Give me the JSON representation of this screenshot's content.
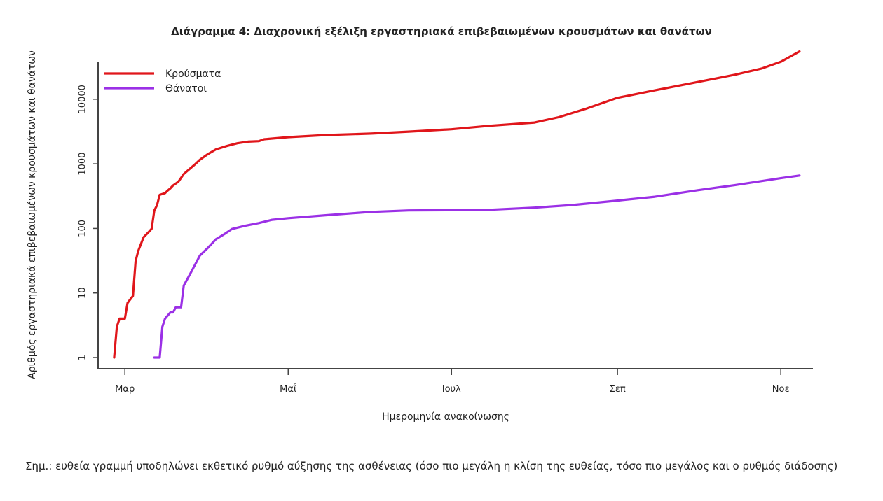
{
  "chart_data": {
    "type": "line",
    "title": "Διάγραμμα 4: Διαχρονική εξέλιξη εργαστηριακά επιβεβαιωμένων κρουσμάτων και θανάτων",
    "xlabel": "Ημερομηνία ανακοίνωσης",
    "ylabel": "Αριθμός εργαστηριακά επιβεβαιωμένων κρουσμάτων και θανάτων",
    "y_scale": "log",
    "ylim": [
      1,
      60000
    ],
    "xlim": [
      "2020-02-20",
      "2020-11-13"
    ],
    "y_ticks": [
      {
        "value": 1,
        "label": "1"
      },
      {
        "value": 10,
        "label": "10"
      },
      {
        "value": 100,
        "label": "100"
      },
      {
        "value": 1000,
        "label": "1000"
      },
      {
        "value": 10000,
        "label": "10000"
      }
    ],
    "x_ticks": [
      {
        "date": "2020-03-01",
        "label": "Μαρ"
      },
      {
        "date": "2020-05-01",
        "label": "Μαΐ"
      },
      {
        "date": "2020-07-01",
        "label": "Ιουλ"
      },
      {
        "date": "2020-09-01",
        "label": "Σεπ"
      },
      {
        "date": "2020-11-01",
        "label": "Νοε"
      }
    ],
    "legend_position": "top-left",
    "grid": false,
    "series": [
      {
        "name": "Κρούσματα",
        "color": "#e0161b",
        "points": [
          [
            "2020-02-26",
            1
          ],
          [
            "2020-02-27",
            3
          ],
          [
            "2020-02-28",
            4
          ],
          [
            "2020-03-01",
            4
          ],
          [
            "2020-03-02",
            7
          ],
          [
            "2020-03-04",
            9
          ],
          [
            "2020-03-05",
            31
          ],
          [
            "2020-03-06",
            45
          ],
          [
            "2020-03-08",
            73
          ],
          [
            "2020-03-10",
            89
          ],
          [
            "2020-03-11",
            99
          ],
          [
            "2020-03-12",
            190
          ],
          [
            "2020-03-13",
            228
          ],
          [
            "2020-03-14",
            331
          ],
          [
            "2020-03-16",
            352
          ],
          [
            "2020-03-17",
            387
          ],
          [
            "2020-03-18",
            418
          ],
          [
            "2020-03-19",
            464
          ],
          [
            "2020-03-20",
            495
          ],
          [
            "2020-03-21",
            530
          ],
          [
            "2020-03-23",
            695
          ],
          [
            "2020-03-25",
            821
          ],
          [
            "2020-03-27",
            966
          ],
          [
            "2020-03-29",
            1156
          ],
          [
            "2020-04-01",
            1415
          ],
          [
            "2020-04-04",
            1673
          ],
          [
            "2020-04-08",
            1884
          ],
          [
            "2020-04-12",
            2081
          ],
          [
            "2020-04-16",
            2207
          ],
          [
            "2020-04-20",
            2245
          ],
          [
            "2020-04-22",
            2401
          ],
          [
            "2020-05-01",
            2591
          ],
          [
            "2020-05-15",
            2788
          ],
          [
            "2020-06-01",
            2937
          ],
          [
            "2020-06-15",
            3148
          ],
          [
            "2020-07-01",
            3432
          ],
          [
            "2020-07-15",
            3879
          ],
          [
            "2020-08-01",
            4358
          ],
          [
            "2020-08-10",
            5270
          ],
          [
            "2020-08-20",
            7075
          ],
          [
            "2020-09-01",
            10524
          ],
          [
            "2020-09-15",
            13730
          ],
          [
            "2020-10-01",
            18475
          ],
          [
            "2020-10-15",
            24000
          ],
          [
            "2020-10-25",
            29992
          ],
          [
            "2020-11-01",
            38054
          ],
          [
            "2020-11-08",
            55000
          ]
        ]
      },
      {
        "name": "Θάνατοι",
        "color": "#9b30e6",
        "points": [
          [
            "2020-03-12",
            1
          ],
          [
            "2020-03-14",
            1
          ],
          [
            "2020-03-15",
            3
          ],
          [
            "2020-03-16",
            4
          ],
          [
            "2020-03-18",
            5
          ],
          [
            "2020-03-19",
            5
          ],
          [
            "2020-03-20",
            6
          ],
          [
            "2020-03-22",
            6
          ],
          [
            "2020-03-23",
            13
          ],
          [
            "2020-03-26",
            22
          ],
          [
            "2020-03-29",
            38
          ],
          [
            "2020-04-01",
            50
          ],
          [
            "2020-04-04",
            68
          ],
          [
            "2020-04-07",
            81
          ],
          [
            "2020-04-10",
            98
          ],
          [
            "2020-04-15",
            110
          ],
          [
            "2020-04-20",
            121
          ],
          [
            "2020-04-25",
            136
          ],
          [
            "2020-05-01",
            144
          ],
          [
            "2020-05-15",
            160
          ],
          [
            "2020-06-01",
            180
          ],
          [
            "2020-06-15",
            190
          ],
          [
            "2020-07-01",
            192
          ],
          [
            "2020-07-15",
            194
          ],
          [
            "2020-08-01",
            210
          ],
          [
            "2020-08-15",
            230
          ],
          [
            "2020-09-01",
            270
          ],
          [
            "2020-09-15",
            310
          ],
          [
            "2020-10-01",
            391
          ],
          [
            "2020-10-15",
            470
          ],
          [
            "2020-11-01",
            600
          ],
          [
            "2020-11-08",
            660
          ]
        ]
      }
    ]
  },
  "note": "Σημ.: ευθεία γραμμή υποδηλώνει εκθετικό ρυθμό αύξησης της ασθένειας (όσο πιο μεγάλη η κλίση της ευθείας, τόσο πιο μεγάλος και ο ρυθμός διάδοσης)"
}
